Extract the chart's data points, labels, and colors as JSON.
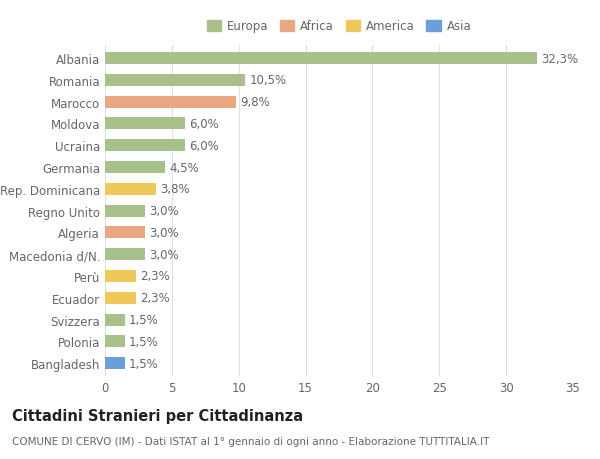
{
  "countries": [
    "Albania",
    "Romania",
    "Marocco",
    "Moldova",
    "Ucraina",
    "Germania",
    "Rep. Dominicana",
    "Regno Unito",
    "Algeria",
    "Macedonia d/N.",
    "Perù",
    "Ecuador",
    "Svizzera",
    "Polonia",
    "Bangladesh"
  ],
  "values": [
    32.3,
    10.5,
    9.8,
    6.0,
    6.0,
    4.5,
    3.8,
    3.0,
    3.0,
    3.0,
    2.3,
    2.3,
    1.5,
    1.5,
    1.5
  ],
  "labels": [
    "32,3%",
    "10,5%",
    "9,8%",
    "6,0%",
    "6,0%",
    "4,5%",
    "3,8%",
    "3,0%",
    "3,0%",
    "3,0%",
    "2,3%",
    "2,3%",
    "1,5%",
    "1,5%",
    "1,5%"
  ],
  "continents": [
    "Europa",
    "Europa",
    "Africa",
    "Europa",
    "Europa",
    "Europa",
    "America",
    "Europa",
    "Africa",
    "Europa",
    "America",
    "America",
    "Europa",
    "Europa",
    "Asia"
  ],
  "continent_colors": {
    "Europa": "#a8c08a",
    "Africa": "#e8a882",
    "America": "#f0c85a",
    "Asia": "#6a9fd8"
  },
  "legend_order": [
    "Europa",
    "Africa",
    "America",
    "Asia"
  ],
  "title": "Cittadini Stranieri per Cittadinanza",
  "subtitle": "COMUNE DI CERVO (IM) - Dati ISTAT al 1° gennaio di ogni anno - Elaborazione TUTTITALIA.IT",
  "xlim": [
    0,
    35
  ],
  "xticks": [
    0,
    5,
    10,
    15,
    20,
    25,
    30,
    35
  ],
  "background_color": "#ffffff",
  "bar_height": 0.55,
  "grid_color": "#e0e0e0",
  "label_fontsize": 8.5,
  "tick_fontsize": 8.5,
  "title_fontsize": 10.5,
  "subtitle_fontsize": 7.5
}
